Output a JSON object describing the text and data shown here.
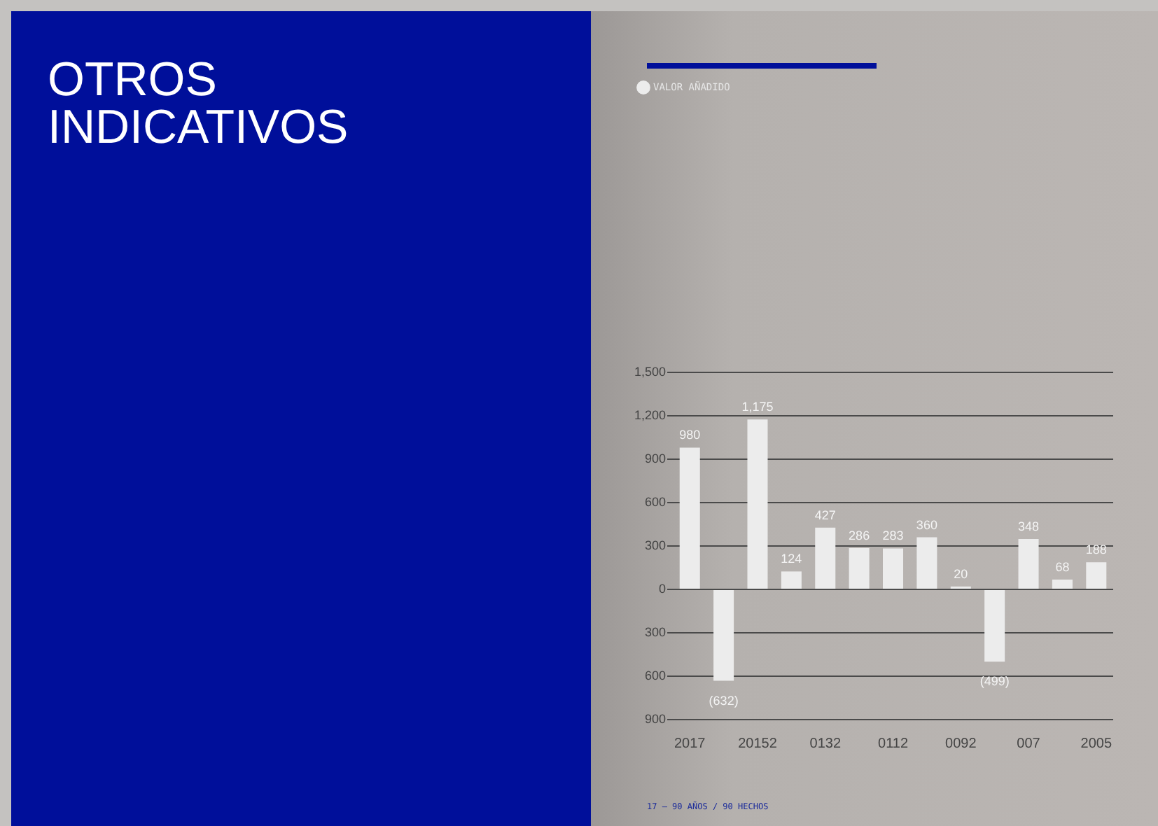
{
  "chart_data": {
    "type": "bar",
    "title": "OTROS INDICATIVOS",
    "categories": [
      "2017",
      null,
      "20152",
      null,
      "0132",
      null,
      "0112",
      null,
      "0092",
      null,
      "007",
      null,
      "2005"
    ],
    "series": [
      {
        "name": "VALOR AÑADIDO",
        "color": "#ececec",
        "values": [
          980,
          -632,
          1175,
          124,
          427,
          286,
          283,
          360,
          20,
          -499,
          348,
          68,
          188
        ],
        "value_labels": [
          "980",
          "(632)",
          "1,175",
          "124",
          "427",
          "286",
          "283",
          "360",
          "20",
          "(499)",
          "348",
          "68",
          "188"
        ]
      }
    ],
    "ylim": [
      -900,
      1500
    ],
    "yticks": [
      {
        "value": -900,
        "label": "900"
      },
      {
        "value": -600,
        "label": "600"
      },
      {
        "value": -300,
        "label": "300"
      },
      0,
      300,
      600,
      900,
      {
        "value": 1200,
        "label": "1,200"
      },
      {
        "value": 1500,
        "label": "1,500"
      }
    ],
    "grid": "y",
    "legend": "top left",
    "annotations": [
      "17 – 90 AÑOS / 90 HECHOS"
    ]
  }
}
